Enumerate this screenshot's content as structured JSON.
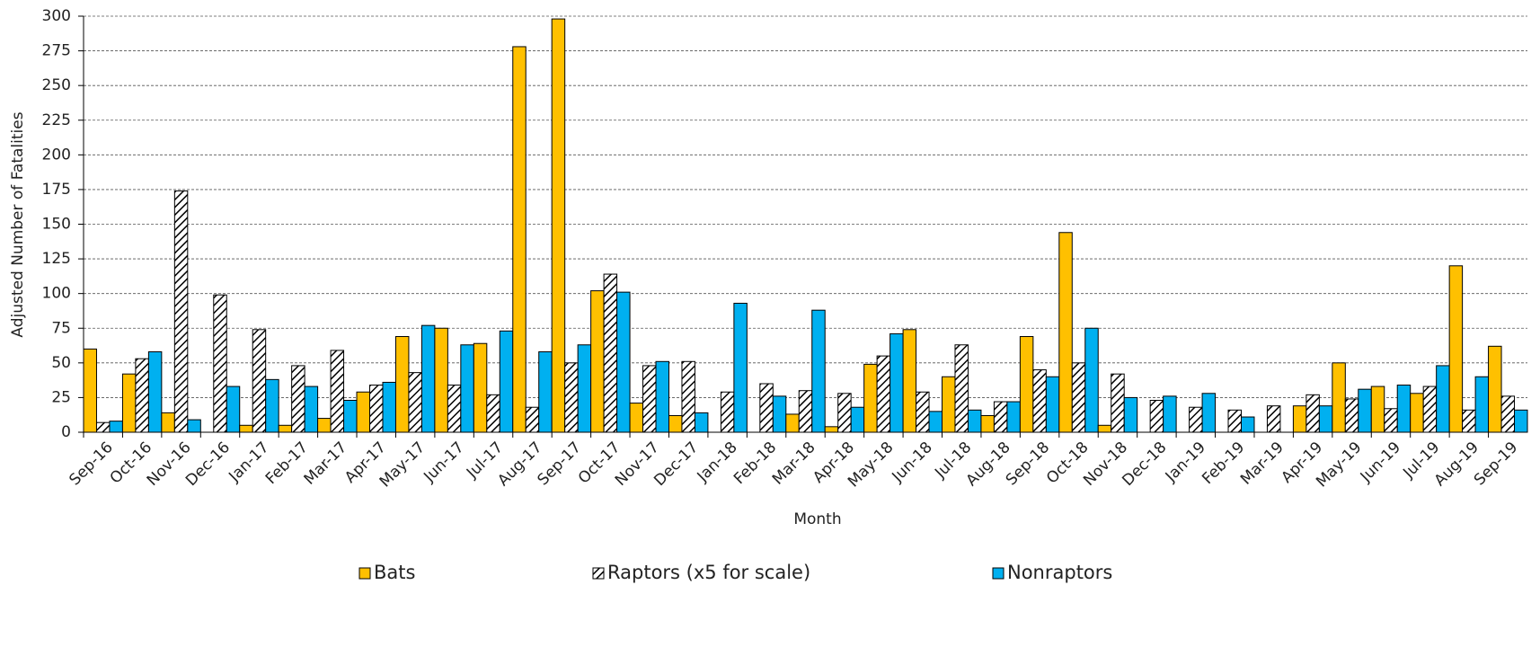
{
  "chart_data": {
    "type": "bar",
    "x_label": "Month",
    "y_label": "Adjusted Number of Fatalities",
    "categories": [
      "Sep-16",
      "Oct-16",
      "Nov-16",
      "Dec-16",
      "Jan-17",
      "Feb-17",
      "Mar-17",
      "Apr-17",
      "May-17",
      "Jun-17",
      "Jul-17",
      "Aug-17",
      "Sep-17",
      "Oct-17",
      "Nov-17",
      "Dec-17",
      "Jan-18",
      "Feb-18",
      "Mar-18",
      "Apr-18",
      "May-18",
      "Jun-18",
      "Jul-18",
      "Aug-18",
      "Sep-18",
      "Oct-18",
      "Nov-18",
      "Dec-18",
      "Jan-19",
      "Feb-19",
      "Mar-19",
      "Apr-19",
      "May-19",
      "Jun-19",
      "Jul-19",
      "Aug-19",
      "Sep-19"
    ],
    "series": [
      {
        "name": "Bats",
        "color": "#ffc000",
        "hatch": false,
        "values": [
          60,
          42,
          14,
          0,
          5,
          5,
          10,
          29,
          69,
          75,
          64,
          278,
          298,
          102,
          21,
          12,
          0,
          0,
          13,
          4,
          49,
          74,
          40,
          12,
          69,
          144,
          5,
          0,
          0,
          0,
          0,
          19,
          50,
          33,
          28,
          120,
          62
        ]
      },
      {
        "name": "Raptors (x5 for scale)",
        "color": "#ffffff",
        "hatch": true,
        "values": [
          7,
          53,
          174,
          99,
          74,
          48,
          59,
          34,
          43,
          34,
          27,
          18,
          50,
          114,
          48,
          51,
          29,
          35,
          30,
          28,
          55,
          29,
          63,
          22,
          45,
          50,
          42,
          23,
          18,
          16,
          19,
          27,
          24,
          17,
          33,
          16,
          26
        ]
      },
      {
        "name": "Nonraptors",
        "color": "#00b0f0",
        "hatch": false,
        "values": [
          8,
          58,
          9,
          33,
          38,
          33,
          23,
          36,
          77,
          63,
          73,
          58,
          63,
          101,
          51,
          14,
          93,
          26,
          88,
          18,
          71,
          15,
          16,
          22,
          40,
          75,
          25,
          26,
          28,
          11,
          0,
          19,
          31,
          34,
          48,
          40,
          16
        ]
      }
    ],
    "ylim": [
      0,
      300
    ],
    "yticks": [
      0,
      25,
      50,
      75,
      100,
      125,
      150,
      175,
      200,
      225,
      250,
      275,
      300
    ],
    "grid": true,
    "legend": "bottom"
  }
}
